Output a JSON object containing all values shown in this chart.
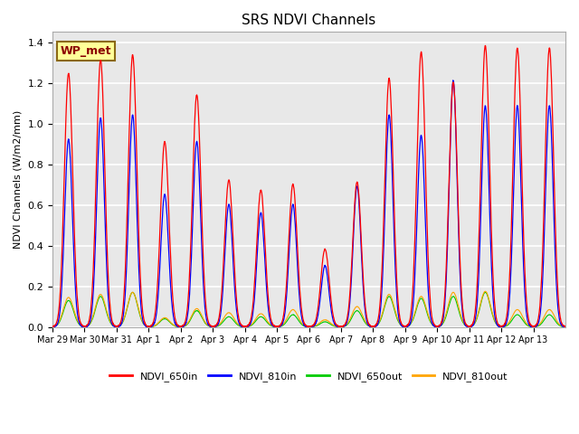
{
  "title": "SRS NDVI Channels",
  "ylabel": "NDVI Channels (W/m2/mm)",
  "annotation": "WP_met",
  "ylim": [
    0,
    1.45
  ],
  "colors": {
    "NDVI_650in": "#FF0000",
    "NDVI_810in": "#0000FF",
    "NDVI_650out": "#00CC00",
    "NDVI_810out": "#FFA500"
  },
  "background_color": "#E8E8E8",
  "tick_labels": [
    "Mar 29",
    "Mar 30",
    "Mar 31",
    "Apr 1",
    "Apr 2",
    "Apr 3",
    "Apr 4",
    "Apr 5",
    "Apr 6",
    "Apr 7",
    "Apr 8",
    "Apr 9",
    "Apr 10",
    "Apr 11",
    "Apr 12",
    "Apr 13"
  ],
  "daily_peaks_650in": [
    1.245,
    1.31,
    1.335,
    0.91,
    1.14,
    0.72,
    0.67,
    0.7,
    0.38,
    0.71,
    1.22,
    1.35,
    1.2,
    1.38,
    1.37,
    1.37
  ],
  "daily_peaks_810in": [
    0.92,
    1.025,
    1.04,
    0.65,
    0.91,
    0.6,
    0.56,
    0.6,
    0.3,
    0.69,
    1.04,
    0.94,
    1.21,
    1.085,
    1.085,
    1.085
  ],
  "daily_peaks_650out": [
    0.13,
    0.15,
    0.17,
    0.04,
    0.08,
    0.05,
    0.05,
    0.06,
    0.025,
    0.08,
    0.15,
    0.14,
    0.15,
    0.17,
    0.06,
    0.06
  ],
  "daily_peaks_810out": [
    0.145,
    0.16,
    0.17,
    0.045,
    0.09,
    0.07,
    0.065,
    0.085,
    0.035,
    0.1,
    0.16,
    0.15,
    0.17,
    0.175,
    0.085,
    0.085
  ],
  "points_per_day": 200,
  "n_days": 16
}
